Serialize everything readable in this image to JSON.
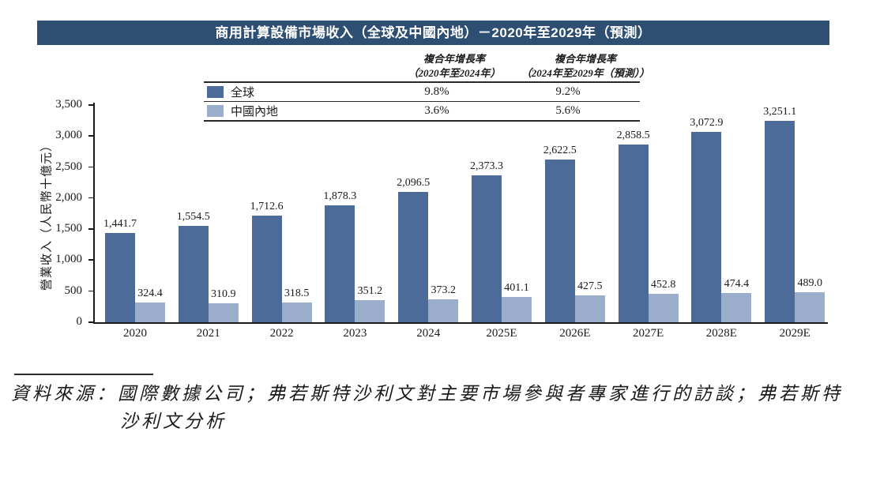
{
  "title": "商用計算設備市場收入（全球及中國內地）－2020年至2029年（預測）",
  "colors": {
    "title_bar": "#2e4f72",
    "global_bar": "#4c6b99",
    "china_bar": "#9aadca",
    "axis": "#1a1a1a"
  },
  "legend": {
    "columns": [
      {
        "title": "複合年增長率",
        "period": "（2020年至2024年）"
      },
      {
        "title": "複合年增長率",
        "period": "（2024年至2029年（預測））"
      }
    ],
    "rows": [
      {
        "label": "全球",
        "cagr_2020_2024": "9.8%",
        "cagr_2024_2029": "9.2%",
        "color": "#4c6b99"
      },
      {
        "label": "中國內地",
        "cagr_2020_2024": "3.6%",
        "cagr_2024_2029": "5.6%",
        "color": "#9aadca"
      }
    ]
  },
  "chart_data": {
    "type": "bar",
    "title": "商用計算設備市場收入（全球及中國內地）－2020年至2029年（預測）",
    "categories": [
      "2020",
      "2021",
      "2022",
      "2023",
      "2024",
      "2025E",
      "2026E",
      "2027E",
      "2028E",
      "2029E"
    ],
    "series": [
      {
        "name": "全球",
        "color": "#4c6b99",
        "values": [
          1441.7,
          1554.5,
          1712.6,
          1878.3,
          2096.5,
          2373.3,
          2622.5,
          2858.5,
          3072.9,
          3251.1
        ],
        "labels": [
          "1,441.7",
          "1,554.5",
          "1,712.6",
          "1,878.3",
          "2,096.5",
          "2,373.3",
          "2,622.5",
          "2,858.5",
          "3,072.9",
          "3,251.1"
        ]
      },
      {
        "name": "中國內地",
        "color": "#9aadca",
        "values": [
          324.4,
          310.9,
          318.5,
          351.2,
          373.2,
          401.1,
          427.5,
          452.8,
          474.4,
          489.0
        ],
        "labels": [
          "324.4",
          "310.9",
          "318.5",
          "351.2",
          "373.2",
          "401.1",
          "427.5",
          "452.8",
          "474.4",
          "489.0"
        ]
      }
    ],
    "xlabel": "",
    "ylabel": "營業收入（人民幣十億元）",
    "ylim": [
      0,
      3500
    ],
    "yticks": [
      {
        "label": "0",
        "value": 0
      },
      {
        "label": "500",
        "value": 500
      },
      {
        "label": "1,000",
        "value": 1000
      },
      {
        "label": "1,500",
        "value": 1500
      },
      {
        "label": "2,000",
        "value": 2000
      },
      {
        "label": "2,500",
        "value": 2500
      },
      {
        "label": "3,000",
        "value": 3000
      },
      {
        "label": "3,500",
        "value": 3500
      }
    ],
    "grid": false,
    "legend_position": "top-table"
  },
  "source_note": {
    "line1": "資料來源：國際數據公司；弗若斯特沙利文對主要市場參與者專家進行的訪談；弗若斯特",
    "line2": "沙利文分析"
  }
}
